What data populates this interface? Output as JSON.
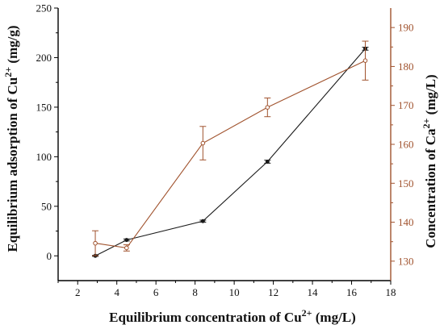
{
  "chart_data": {
    "type": "line",
    "xlabel": "Equilibrium concentration of Cu",
    "xlabel_sup": "2+",
    "xlabel_unit": " (mg/L)",
    "ylabel_left": "Equilibrium adsorption of Cu",
    "ylabel_left_sup": "2+",
    "ylabel_left_unit": " (mg/g)",
    "ylabel_right": "Concentration of Ca",
    "ylabel_right_sup": "2+",
    "ylabel_right_unit": " (mg/L)",
    "xlim": [
      1,
      18
    ],
    "ylim_left": [
      -25,
      250
    ],
    "ylim_right": [
      125,
      195
    ],
    "x_ticks": [
      2,
      4,
      6,
      8,
      10,
      12,
      14,
      16,
      18
    ],
    "y_left_ticks": [
      0,
      50,
      100,
      150,
      200,
      250
    ],
    "y_right_ticks": [
      130,
      140,
      150,
      160,
      170,
      180,
      190
    ],
    "grid": false,
    "series": [
      {
        "axis": "left",
        "color": "#1a1a1a",
        "marker": "filled-circle",
        "points": [
          {
            "x": 2.9,
            "y": 0,
            "err": 0.5
          },
          {
            "x": 4.5,
            "y": 16,
            "err": 1
          },
          {
            "x": 8.4,
            "y": 35,
            "err": 1
          },
          {
            "x": 11.7,
            "y": 95,
            "err": 1.5
          },
          {
            "x": 16.7,
            "y": 209,
            "err": 1.5
          }
        ]
      },
      {
        "axis": "right",
        "color": "#a0522d",
        "marker": "open-circle",
        "points": [
          {
            "x": 2.9,
            "y": 134.6,
            "err": 3.2
          },
          {
            "x": 4.5,
            "y": 133.4,
            "err": 0.8
          },
          {
            "x": 8.4,
            "y": 160.3,
            "err": 4.3
          },
          {
            "x": 11.7,
            "y": 169.5,
            "err": 2.4
          },
          {
            "x": 16.7,
            "y": 181.5,
            "err": 5
          }
        ]
      }
    ]
  }
}
